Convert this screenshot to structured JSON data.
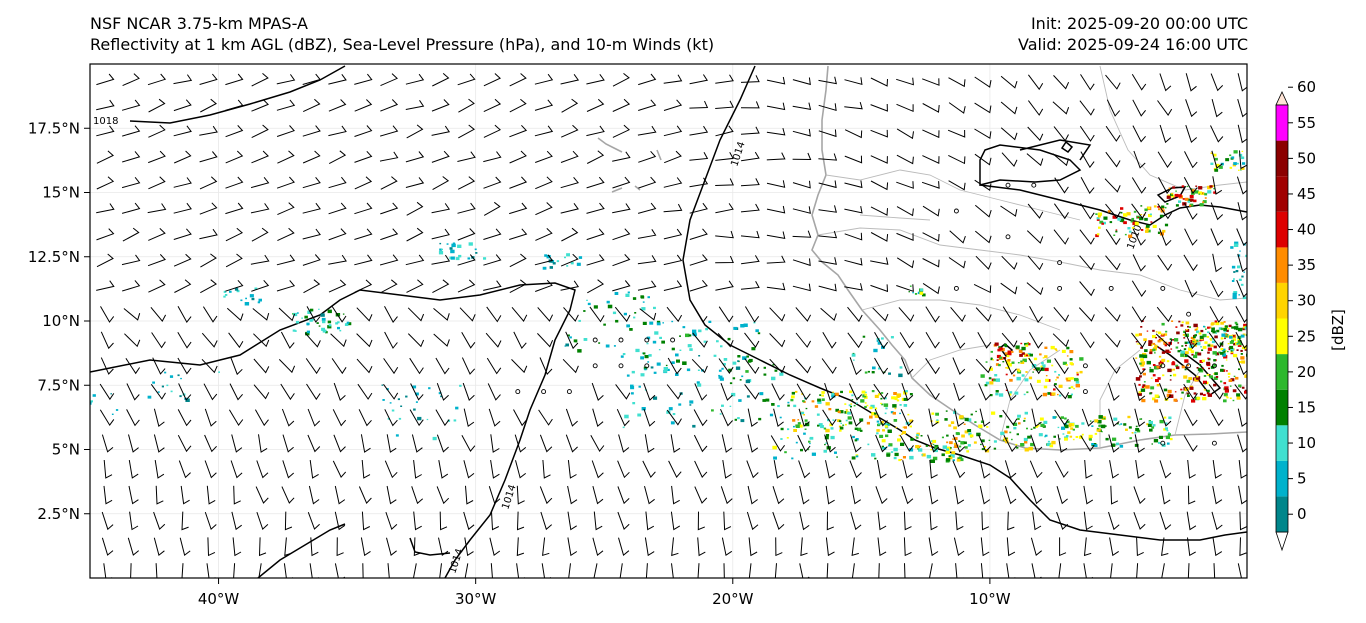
{
  "header": {
    "title_line1": "NSF NCAR 3.75-km MPAS-A",
    "title_line2": "Reflectivity at 1 km AGL (dBZ), Sea-Level Pressure (hPa), and 10-m Winds (kt)",
    "init": "Init: 2025-09-20 00:00 UTC",
    "valid": "Valid: 2025-09-24 16:00 UTC"
  },
  "axes": {
    "lon_ticks": [
      "40°W",
      "30°W",
      "20°W",
      "10°W"
    ],
    "lat_ticks": [
      "17.5°N",
      "15°N",
      "12.5°N",
      "10°N",
      "7.5°N",
      "5°N",
      "2.5°N"
    ],
    "lon_range": [
      -45,
      0
    ],
    "lat_range": [
      0,
      20
    ]
  },
  "colorbar": {
    "label": "[dBZ]",
    "ticks": [
      "0",
      "5",
      "10",
      "15",
      "20",
      "25",
      "30",
      "35",
      "40",
      "45",
      "50",
      "55",
      "60"
    ],
    "colors": [
      "#ffffff",
      "#00868b",
      "#00b2cc",
      "#40e0d0",
      "#008000",
      "#2db82d",
      "#ffff00",
      "#ffd400",
      "#ff8c00",
      "#dd0000",
      "#a00000",
      "#8b0000",
      "#ff00ff",
      "#ffe4d6"
    ]
  },
  "contours": {
    "labels": [
      "1018",
      "1014",
      "1014",
      "1014",
      "1010"
    ]
  }
}
